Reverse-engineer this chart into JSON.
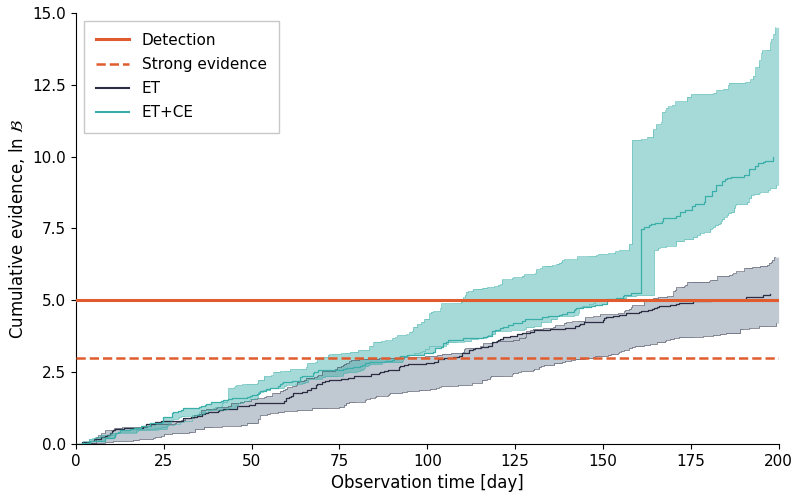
{
  "detection_level": 5.0,
  "strong_evidence_level": 3.0,
  "xlim": [
    0,
    200
  ],
  "ylim": [
    0,
    15.0
  ],
  "xlabel": "Observation time [day]",
  "ylabel": "Cumulative evidence, ln $\\mathcal{B}$",
  "xticks": [
    0,
    25,
    50,
    75,
    100,
    125,
    150,
    175,
    200
  ],
  "yticks": [
    0.0,
    2.5,
    5.0,
    7.5,
    10.0,
    12.5,
    15.0
  ],
  "detection_color": "#e05c2e",
  "strong_evidence_color": "#e05c2e",
  "et_color": "#2b2d42",
  "et_fill_color": "#8393a7",
  "et_fill_alpha": 0.5,
  "etce_color": "#3aafa9",
  "etce_fill_color": "#3aafa9",
  "etce_fill_alpha": 0.45,
  "figsize": [
    8.0,
    4.99
  ],
  "dpi": 100
}
